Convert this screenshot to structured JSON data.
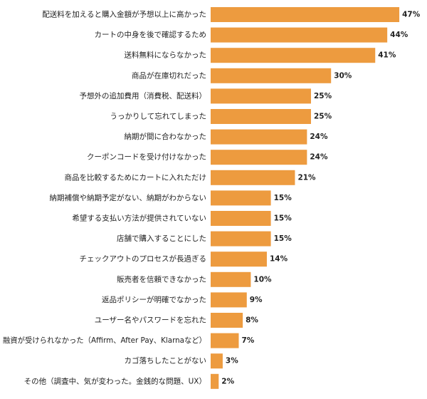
{
  "chart_data": {
    "type": "bar",
    "orientation": "horizontal",
    "title": "",
    "xlabel": "",
    "ylabel": "",
    "xlim": [
      0,
      50
    ],
    "grid": false,
    "legend": "none",
    "bar_color": "#ED9B3F",
    "text_color": "#222222",
    "categories": [
      "配送料を加えると購入金額が予想以上に高かった",
      "カートの中身を後で確認するため",
      "送料無料にならなかった",
      "商品が在庫切れだった",
      "予想外の追加費用（消費税、配送料）",
      "うっかりして忘れてしまった",
      "納期が間に合わなかった",
      "クーポンコードを受け付けなかった",
      "商品を比較するためにカートに入れただけ",
      "納期補償や納期予定がない、納期がわからない",
      "希望する支払い方法が提供されていない",
      "店舗で購入することにした",
      "チェックアウトのプロセスが長過ぎる",
      "販売者を信頼できなかった",
      "返品ポリシーが明確でなかった",
      "ユーザー名やパスワードを忘れた",
      "融資が受けられなかった（Affirm、After Pay、Klarnaなど）",
      "カゴ落ちしたことがない",
      "その他（調査中、気が変わった。金銭的な問題、UX）"
    ],
    "values": [
      47,
      44,
      41,
      30,
      25,
      25,
      24,
      24,
      21,
      15,
      15,
      15,
      14,
      10,
      9,
      8,
      7,
      3,
      2
    ],
    "value_labels": [
      "47%",
      "44%",
      "41%",
      "30%",
      "25%",
      "25%",
      "24%",
      "24%",
      "21%",
      "15%",
      "15%",
      "15%",
      "14%",
      "10%",
      "9%",
      "8%",
      "7%",
      "3%",
      "2%"
    ]
  }
}
